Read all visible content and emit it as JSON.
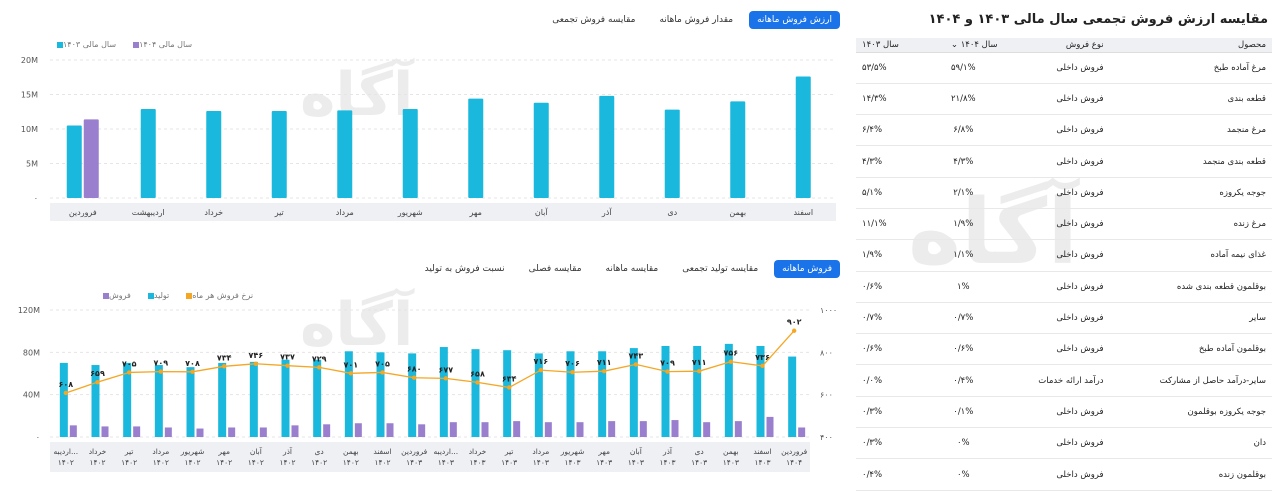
{
  "title": "مقایسه ارزش فروش تجمعی سال مالی ۱۴۰۳ و ۱۴۰۴",
  "top_tabs": [
    "ارزش فروش ماهانه",
    "مقدار فروش ماهانه",
    "مقایسه فروش تجمعی"
  ],
  "bottom_tabs": [
    "فروش ماهانه",
    "مقایسه تولید تجمعی",
    "مقایسه ماهانه",
    "مقایسه فصلی",
    "نسبت فروش به تولید"
  ],
  "watermark": "آگاه",
  "colors": {
    "cyan": "#1ab8dc",
    "purple": "#9a7fcf",
    "orange": "#f5a623",
    "accent": "#1a73e8"
  },
  "chart_data": [
    {
      "type": "bar",
      "title": "",
      "legend": [
        "سال مالی ۱۴۰۴",
        "سال مالی ۱۴۰۳"
      ],
      "categories": [
        "اسفند",
        "بهمن",
        "دی",
        "آذر",
        "آبان",
        "مهر",
        "شهریور",
        "مرداد",
        "تیر",
        "خرداد",
        "اردیبهشت",
        "فروردین"
      ],
      "series": [
        {
          "name": "سال مالی ۱۴۰۳",
          "values": [
            17.6,
            14.0,
            12.8,
            14.8,
            13.8,
            14.4,
            12.9,
            12.7,
            12.6,
            12.6,
            12.9,
            10.5
          ]
        },
        {
          "name": "سال مالی ۱۴۰۴",
          "values": [
            0,
            0,
            0,
            0,
            0,
            0,
            0,
            0,
            0,
            0,
            0,
            11.4
          ]
        }
      ],
      "ylim": [
        0,
        20
      ],
      "yticks": [
        "۰",
        "5M",
        "10M",
        "15M",
        "20M"
      ]
    },
    {
      "type": "bar",
      "title": "",
      "legend": [
        "فروش",
        "تولید",
        "نرخ فروش هر ماه"
      ],
      "categories": [
        "اردیبه... ۱۴۰۲",
        "خرداد ۱۴۰۲",
        "تیر ۱۴۰۲",
        "مرداد ۱۴۰۲",
        "شهریور ۱۴۰۲",
        "مهر ۱۴۰۲",
        "آبان ۱۴۰۲",
        "آذر ۱۴۰۲",
        "دی ۱۴۰۲",
        "بهمن ۱۴۰۲",
        "اسفند ۱۴۰۲",
        "فروردین ۱۴۰۳",
        "اردیبه... ۱۴۰۳",
        "خرداد ۱۴۰۳",
        "تیر ۱۴۰۳",
        "مرداد ۱۴۰۳",
        "شهریور ۱۴۰۳",
        "مهر ۱۴۰۳",
        "آبان ۱۴۰۳",
        "آذر ۱۴۰۳",
        "دی ۱۴۰۳",
        "بهمن ۱۴۰۳",
        "اسفند ۱۴۰۳",
        "فروردین ۱۴۰۴"
      ],
      "series": [
        {
          "name": "تولید",
          "values": [
            70,
            68,
            70,
            68,
            66,
            70,
            71,
            73,
            73,
            81,
            80,
            79,
            85,
            83,
            82,
            79,
            81,
            81,
            84,
            86,
            86,
            88,
            86,
            76
          ]
        },
        {
          "name": "فروش",
          "values": [
            11,
            10,
            10,
            9,
            8,
            9,
            9,
            11,
            12,
            13,
            13,
            12,
            14,
            14,
            15,
            14,
            14,
            15,
            15,
            16,
            14,
            15,
            19,
            9
          ]
        },
        {
          "name": "نرخ فروش هر ماه",
          "values": [
            608,
            659,
            705,
            709,
            708,
            734,
            746,
            737,
            729,
            701,
            705,
            680,
            677,
            658,
            634,
            716,
            706,
            711,
            743,
            709,
            711,
            756,
            736,
            902
          ]
        }
      ],
      "rate_labels": [
        "۶۰۸",
        "۶۵۹",
        "۷۰۵",
        "۷۰۹",
        "۷۰۸",
        "۷۳۴",
        "۷۴۶",
        "۷۳۷",
        "۷۲۹",
        "۷۰۱",
        "۷۰۵",
        "۶۸۰",
        "۶۷۷",
        "۶۵۸",
        "۶۳۴",
        "۷۱۶",
        "۷۰۶",
        "۷۱۱",
        "۷۴۳",
        "۷۰۹",
        "۷۱۱",
        "۷۵۶",
        "۷۳۶",
        "۹۰۲"
      ],
      "ylim": [
        0,
        120
      ],
      "y2lim": [
        400,
        1000
      ],
      "yticks": [
        "۰",
        "40M",
        "80M",
        "120M"
      ],
      "y2ticks": [
        "۴۰۰",
        "۶۰۰",
        "۸۰۰",
        "۱۰۰۰"
      ]
    }
  ],
  "table": {
    "headers": [
      "محصول",
      "نوع فروش",
      "سال ۱۴۰۴",
      "سال ۱۴۰۳"
    ],
    "rows": [
      [
        "مرغ آماده طبخ",
        "فروش داخلی",
        "۵۹/۱%",
        "۵۳/۵%"
      ],
      [
        "قطعه بندی",
        "فروش داخلی",
        "۲۱/۸%",
        "۱۴/۳%"
      ],
      [
        "مرغ منجمد",
        "فروش داخلی",
        "۶/۸%",
        "۶/۴%"
      ],
      [
        "قطعه بندی منجمد",
        "فروش داخلی",
        "۴/۳%",
        "۴/۳%"
      ],
      [
        "جوجه یکروزه",
        "فروش داخلی",
        "۲/۱%",
        "۵/۱%"
      ],
      [
        "مرغ زنده",
        "فروش داخلی",
        "۱/۹%",
        "۱۱/۱%"
      ],
      [
        "غذای نیمه آماده",
        "فروش داخلی",
        "۱/۱%",
        "۱/۹%"
      ],
      [
        "بوقلمون قطعه بندی شده",
        "فروش داخلی",
        "۱%",
        "۰/۶%"
      ],
      [
        "سایر",
        "فروش داخلی",
        "۰/۷%",
        "۰/۷%"
      ],
      [
        "بوقلمون آماده طبخ",
        "فروش داخلی",
        "۰/۶%",
        "۰/۶%"
      ],
      [
        "سایر-درآمد حاصل از مشارکت",
        "درآمد ارائه خدمات",
        "۰/۴%",
        "۰/۰%"
      ],
      [
        "جوجه یکروزه بوقلمون",
        "فروش داخلی",
        "۰/۱%",
        "۰/۳%"
      ],
      [
        "دان",
        "فروش داخلی",
        "۰%",
        "۰/۳%"
      ],
      [
        "بوقلمون زنده",
        "فروش داخلی",
        "۰%",
        "۰/۴%"
      ]
    ]
  }
}
